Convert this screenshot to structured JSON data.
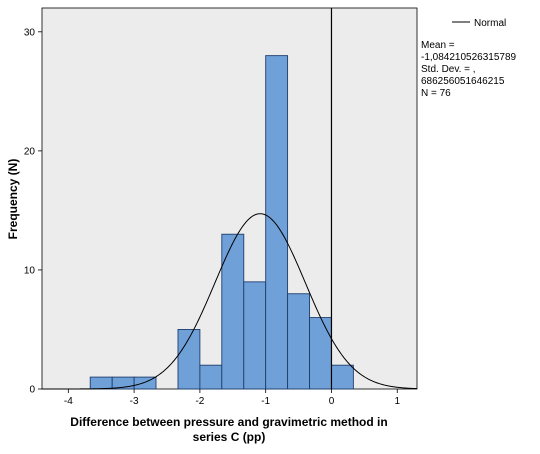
{
  "chart_data": {
    "type": "bar",
    "subtype": "histogram",
    "bin_width": 0.3333,
    "bins": [
      {
        "x0": -3.667,
        "x1": -3.333,
        "count": 1
      },
      {
        "x0": -3.333,
        "x1": -3.0,
        "count": 1
      },
      {
        "x0": -3.0,
        "x1": -2.667,
        "count": 1
      },
      {
        "x0": -2.333,
        "x1": -2.0,
        "count": 5
      },
      {
        "x0": -2.0,
        "x1": -1.667,
        "count": 2
      },
      {
        "x0": -1.667,
        "x1": -1.333,
        "count": 13
      },
      {
        "x0": -1.333,
        "x1": -1.0,
        "count": 9
      },
      {
        "x0": -1.0,
        "x1": -0.667,
        "count": 28
      },
      {
        "x0": -0.667,
        "x1": -0.333,
        "count": 8
      },
      {
        "x0": -0.333,
        "x1": 0.0,
        "count": 6
      },
      {
        "x0": 0.0,
        "x1": 0.333,
        "count": 2
      }
    ],
    "normal_curve": {
      "mean": -1.084210526315789,
      "sd": 0.686256051646215,
      "n": 76
    },
    "xlim": [
      -4.4,
      1.3
    ],
    "ylim": [
      0,
      32
    ],
    "x_ticks": [
      -4,
      -3,
      -2,
      -1,
      0,
      1
    ],
    "y_ticks": [
      0,
      10,
      20,
      30
    ],
    "reference_line_x": 0,
    "xlabel_lines": [
      "Difference between pressure and gravimetric method in",
      "series C (pp)"
    ],
    "ylabel": "Frequency (N)",
    "legend": {
      "position": "top-right",
      "entry": "Normal",
      "stats_lines": [
        "Mean =",
        "-1,084210526315789",
        "Std. Dev. = ,",
        "686256051646215",
        "N = 76"
      ]
    },
    "colors": {
      "bar_fill": "#6fa0d8",
      "bar_stroke": "#1f3f6e",
      "plot_bg": "#ececec",
      "curve": "#000000"
    }
  }
}
